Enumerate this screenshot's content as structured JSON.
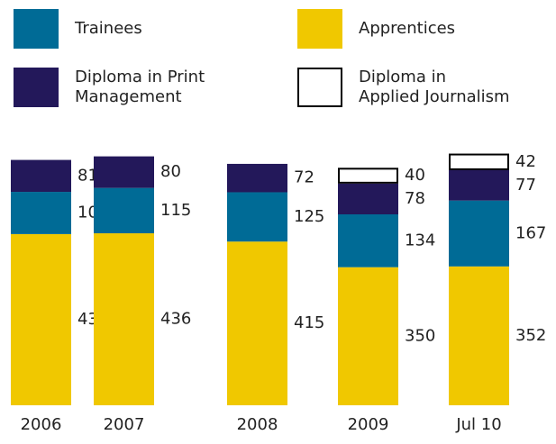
{
  "chart_data": {
    "type": "stacked-bar",
    "categories": [
      "2006",
      "2007",
      "2008",
      "2009",
      "Jul 10"
    ],
    "series": [
      {
        "name": "Apprentices",
        "color": "#f0c800",
        "values": [
          434,
          436,
          415,
          350,
          352
        ]
      },
      {
        "name": "Trainees",
        "color": "#006b96",
        "values": [
          107,
          115,
          125,
          134,
          167
        ]
      },
      {
        "name": "Diploma in Print\nManagement",
        "color": "#23185a",
        "values": [
          81,
          80,
          72,
          78,
          77
        ]
      },
      {
        "name": "Diploma in\nApplied Journalism",
        "color": "#ffffff",
        "values": [
          null,
          null,
          null,
          40,
          42
        ]
      }
    ]
  }
}
